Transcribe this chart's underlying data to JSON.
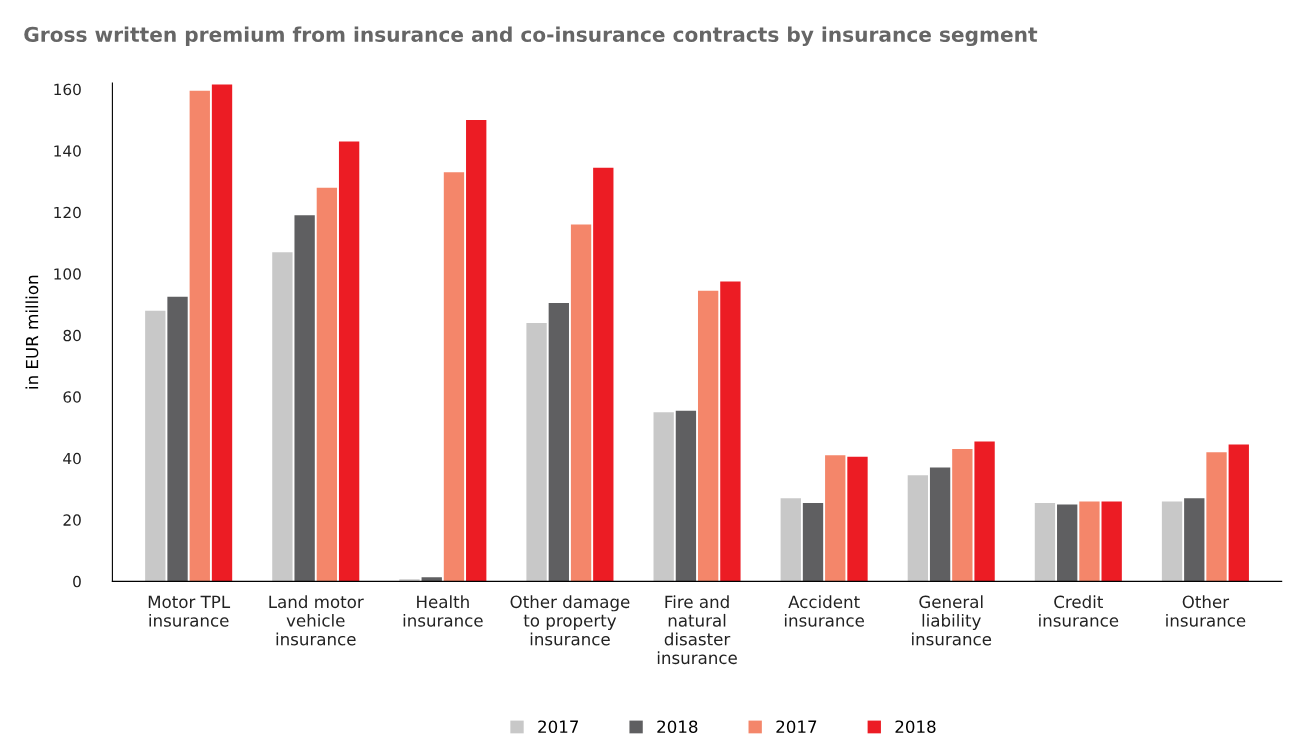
{
  "chart_data": {
    "type": "bar",
    "title": "Gross written premium from insurance and co-insurance contracts by insurance segment",
    "ylabel": "in EUR million",
    "categories": [
      "Motor TPL\ninsurance",
      "Land motor\nvehicle\ninsurance",
      "Health\ninsurance",
      "Other damage\nto property\ninsurance",
      "Fire and\nnatural\ndisaster\ninsurance",
      "Accident\ninsurance",
      "General\nliability\ninsurance",
      "Credit\ninsurance",
      "Other\ninsurance"
    ],
    "series": [
      {
        "name": "2017",
        "color": "#c8c8c8",
        "values": [
          88,
          107,
          0.7,
          84,
          55,
          27,
          34.5,
          25.5,
          26
        ]
      },
      {
        "name": "2018",
        "color": "#5f5f61",
        "values": [
          92.5,
          119,
          1.3,
          90.5,
          55.5,
          25.5,
          37,
          25,
          27
        ]
      },
      {
        "name": "2017",
        "color": "#f4866a",
        "values": [
          159.5,
          128,
          133,
          116,
          94.5,
          41,
          43,
          26,
          42
        ]
      },
      {
        "name": "2018",
        "color": "#ec1c24",
        "values": [
          161.5,
          143,
          150,
          134.5,
          97.5,
          40.5,
          45.5,
          26,
          44.5
        ]
      }
    ],
    "ylim": [
      0,
      162
    ],
    "yticks": [
      0,
      20,
      40,
      60,
      80,
      100,
      120,
      140,
      160
    ],
    "legend": "bottom"
  }
}
